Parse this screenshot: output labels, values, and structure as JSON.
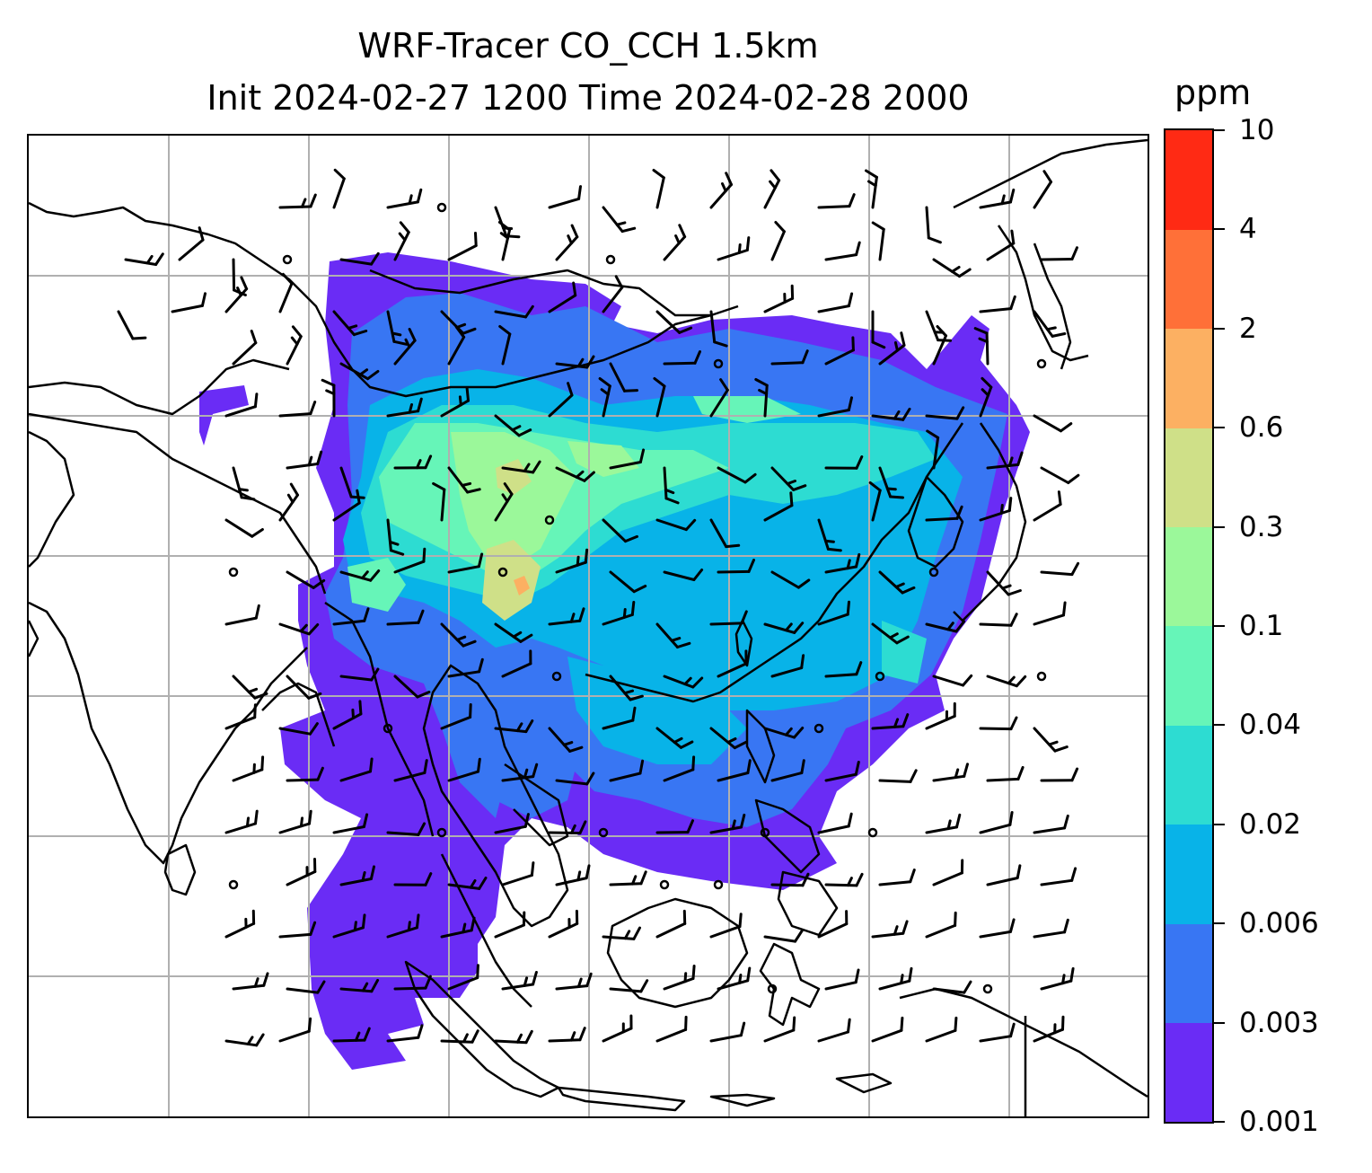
{
  "title": {
    "line1": "WRF-Tracer CO_CCH 1.5km",
    "line2": "Init 2024-02-27 1200 Time 2024-02-28 2000"
  },
  "colorbar": {
    "unit": "ppm",
    "levels": [
      "0.001",
      "0.003",
      "0.006",
      "0.02",
      "0.04",
      "0.1",
      "0.3",
      "0.6",
      "2",
      "4",
      "10"
    ],
    "colors": [
      "#6a2cf5",
      "#3876f3",
      "#08b3e8",
      "#2ddcd2",
      "#66f5b8",
      "#9bf89a",
      "#cfe088",
      "#fcb062",
      "#ff7038",
      "#ff2a14"
    ]
  },
  "map": {
    "gridlines": true,
    "grid_color": "#b0b0b0",
    "coastline_color": "#000000",
    "wind_barb_color": "#000000",
    "calm_marker": "circle"
  }
}
